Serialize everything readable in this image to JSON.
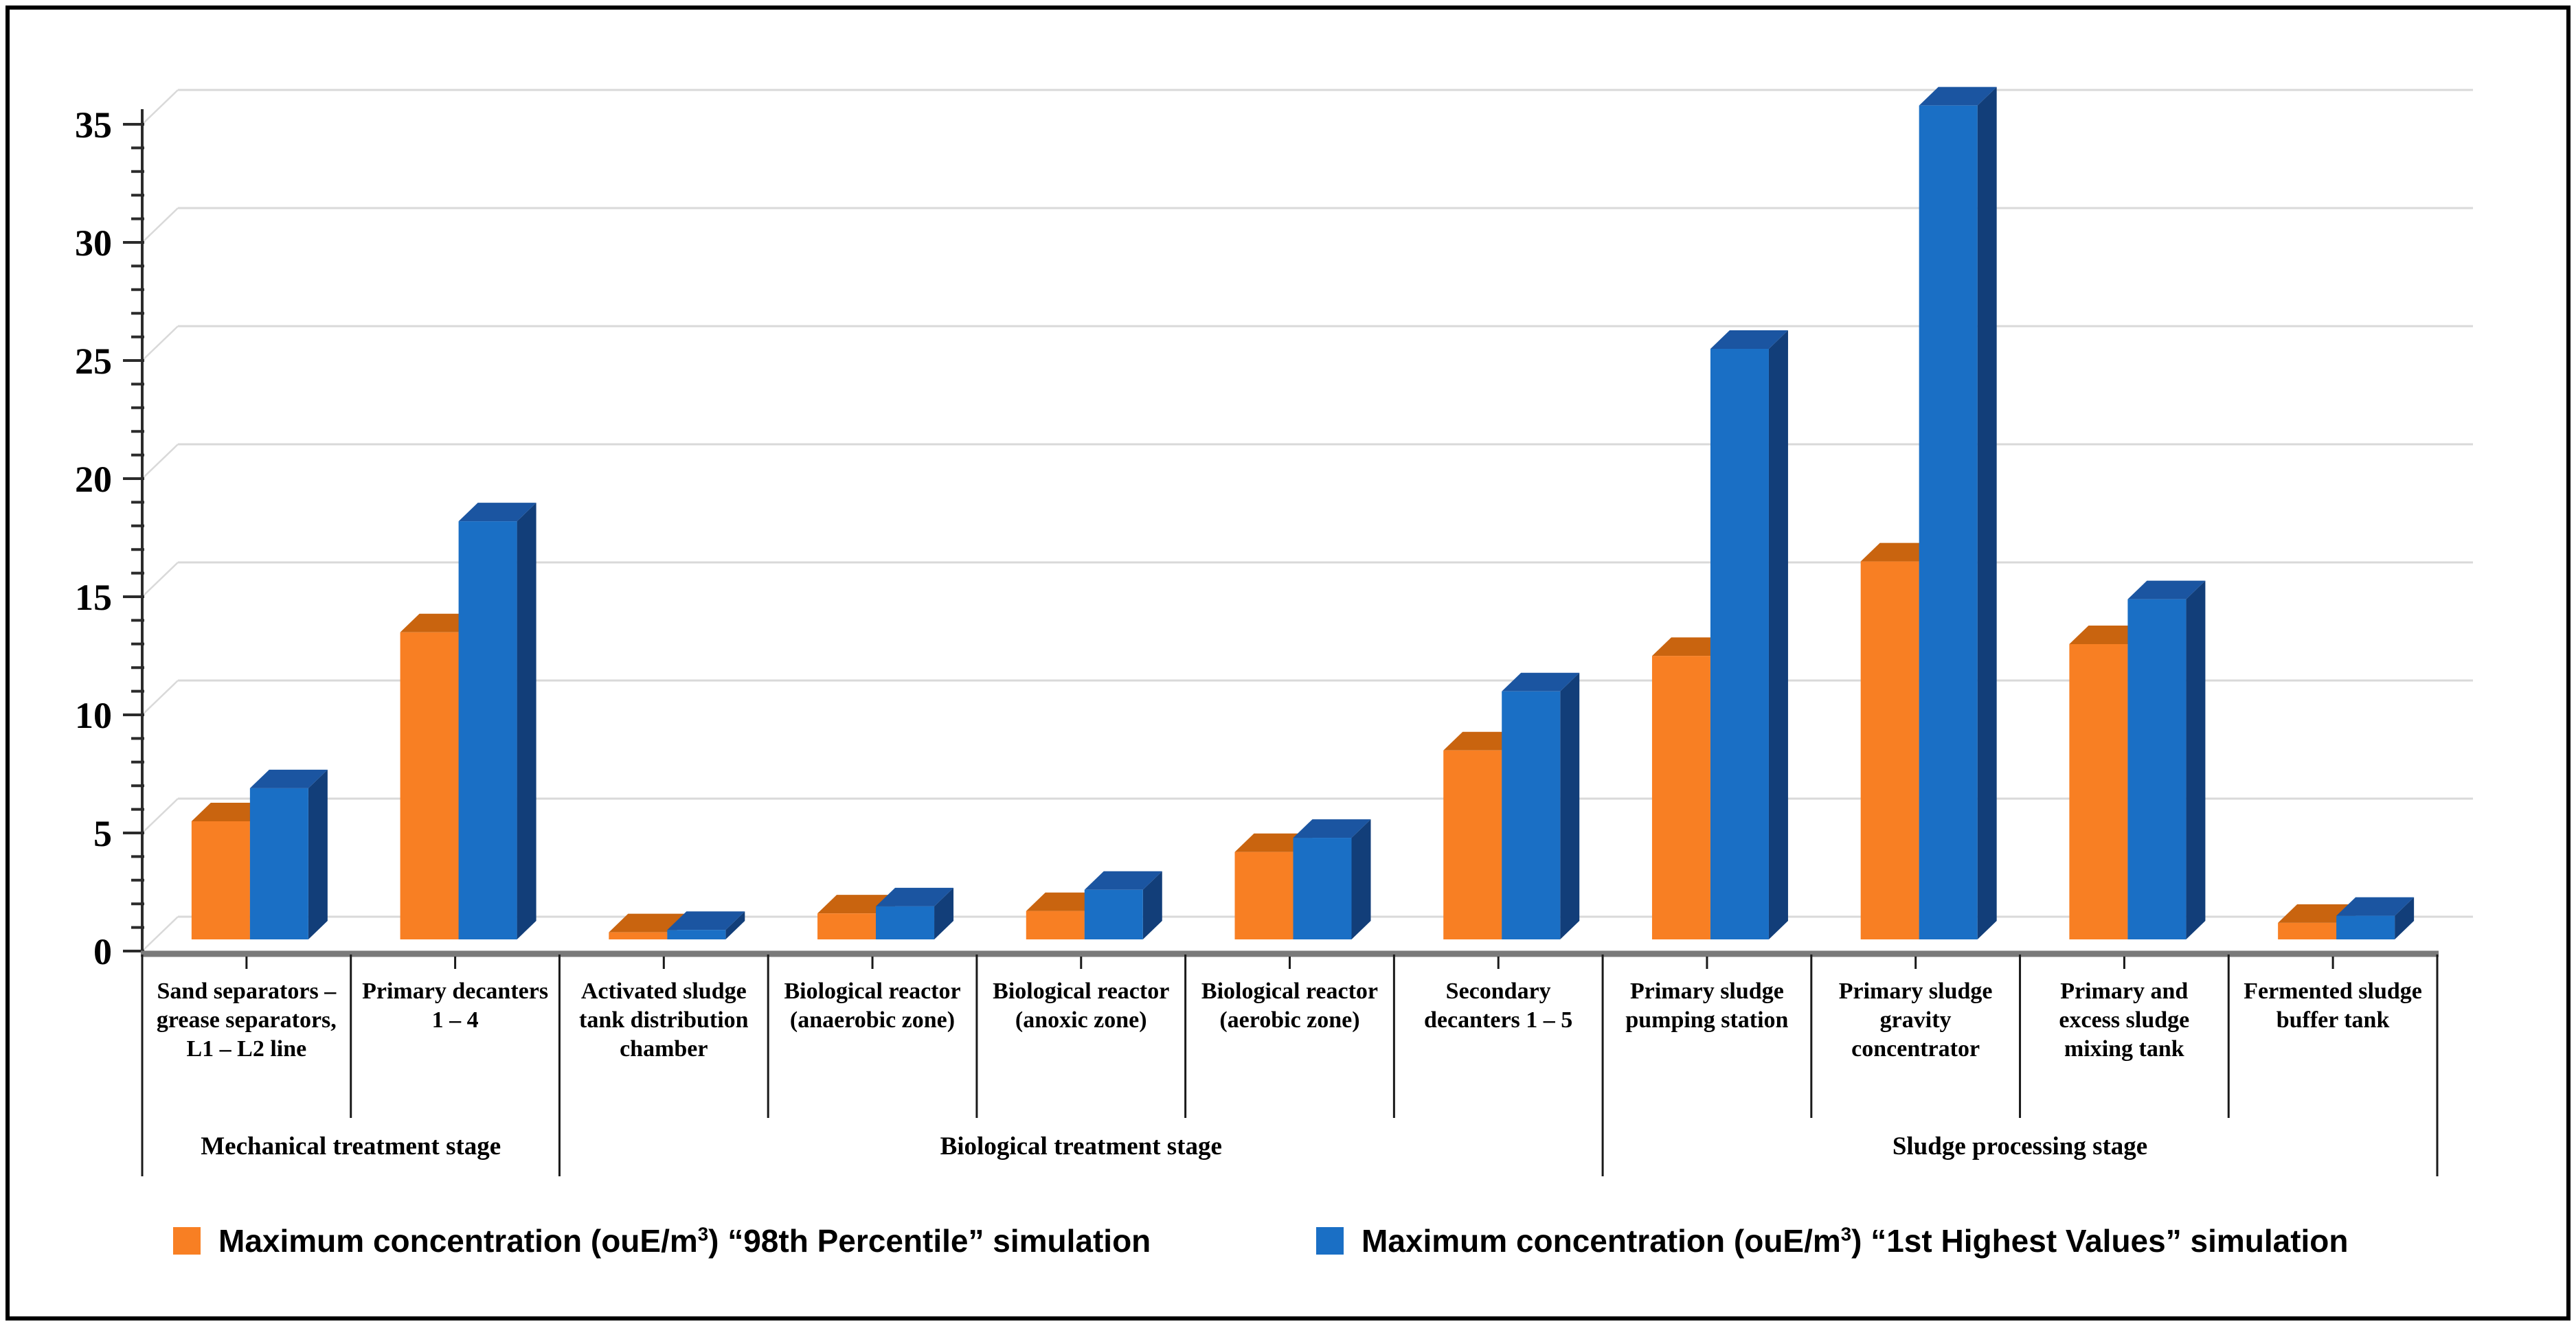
{
  "chart_data": {
    "type": "bar",
    "style": "3d-clustered-column",
    "title": "",
    "xlabel": "",
    "ylabel": "",
    "ylim": [
      0,
      35
    ],
    "ytick_step": 5,
    "minor_tick_step": 1,
    "grid": true,
    "legend_position": "bottom",
    "yticks": [
      0,
      5,
      10,
      15,
      20,
      25,
      30,
      35
    ],
    "categories": [
      "Sand separators – grease separators, L1 – L2 line",
      "Primary decanters 1 – 4",
      "Activated sludge tank distribution chamber",
      "Biological reactor (anaerobic zone)",
      "Biological reactor (anoxic zone)",
      "Biological reactor (aerobic zone)",
      "Secondary decanters 1 – 5",
      "Primary sludge pumping station",
      "Primary sludge gravity concentrator",
      "Primary and excess sludge mixing tank",
      "Fermented sludge buffer tank"
    ],
    "category_groups": [
      {
        "label": "Mechanical treatment stage",
        "from": 0,
        "to": 1
      },
      {
        "label": "Biological treatment stage",
        "from": 2,
        "to": 6
      },
      {
        "label": "Sludge processing stage",
        "from": 7,
        "to": 10
      }
    ],
    "series": [
      {
        "name": "Maximum concentration (ouE/m3) “98th Percentile” simulation",
        "color_front": "#F87F23",
        "color_top": "#C9640F",
        "color_side": "#AE5509",
        "values": [
          5,
          13,
          0.3,
          1.1,
          1.2,
          3.7,
          8,
          12,
          16,
          12.5,
          0.7
        ]
      },
      {
        "name": "Maximum concentration (ouE/m3) “1st Highest Values” simulation",
        "color_front": "#1A6FC5",
        "color_top": "#1B55A1",
        "color_side": "#123E79",
        "values": [
          6.4,
          17.7,
          0.4,
          1.4,
          2.1,
          4.3,
          10.5,
          25,
          35.3,
          14.4,
          1.0
        ]
      }
    ]
  },
  "colors": {
    "gridline": "#D9D9D9",
    "axis_line": "#2b2b2b",
    "category_axis_line": "#7a7a7a",
    "separator": "#1a1a1a",
    "text": "#000000",
    "background": "#ffffff",
    "border": "#000000"
  },
  "legend": {
    "items": [
      {
        "pre": "Maximum concentration (ouE/m",
        "sup": "3",
        "post": ") “98th Percentile” simulation",
        "color": "#F87F23"
      },
      {
        "pre": "Maximum concentration (ouE/m",
        "sup": "3",
        "post": ") “1st Highest Values” simulation",
        "color": "#1A6FC5"
      }
    ]
  }
}
